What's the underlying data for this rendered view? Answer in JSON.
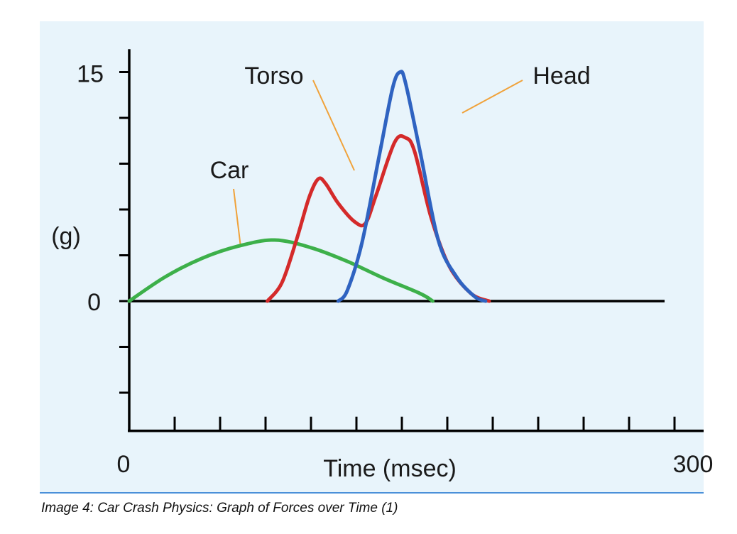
{
  "caption": "Image 4: Car Crash Physics: Graph of Forces over Time (1)",
  "chart_data": {
    "type": "line",
    "title": "",
    "xlabel": "Time (msec)",
    "ylabel": "(g)",
    "xlim": [
      0,
      300
    ],
    "ylim": [
      -8.5,
      16.5
    ],
    "x_tick_labels": [
      "0",
      "300"
    ],
    "y_tick_labels": [
      "0",
      "15"
    ],
    "x_ticks": [
      0,
      25,
      50,
      75,
      100,
      125,
      150,
      175,
      200,
      225,
      250,
      275,
      300
    ],
    "y_ticks": [
      -6,
      -3,
      0,
      3,
      6,
      9,
      12,
      15
    ],
    "grid": false,
    "series": [
      {
        "name": "Car",
        "color": "#3db04a",
        "points": [
          [
            0,
            0
          ],
          [
            20,
            1.6
          ],
          [
            40,
            2.8
          ],
          [
            60,
            3.6
          ],
          [
            80,
            4.0
          ],
          [
            100,
            3.5
          ],
          [
            120,
            2.6
          ],
          [
            140,
            1.5
          ],
          [
            160,
            0.5
          ],
          [
            167,
            0
          ]
        ]
      },
      {
        "name": "Torso",
        "color": "#d42a2a",
        "points": [
          [
            76,
            0
          ],
          [
            84,
            1.2
          ],
          [
            92,
            4.0
          ],
          [
            99,
            6.8
          ],
          [
            104,
            8.0
          ],
          [
            108,
            7.7
          ],
          [
            115,
            6.4
          ],
          [
            124,
            5.2
          ],
          [
            130,
            5.1
          ],
          [
            136,
            7.0
          ],
          [
            146,
            10.4
          ],
          [
            152,
            10.7
          ],
          [
            157,
            9.8
          ],
          [
            166,
            5.5
          ],
          [
            176,
            2.3
          ],
          [
            188,
            0.5
          ],
          [
            198,
            0
          ]
        ]
      },
      {
        "name": "Head",
        "color": "#2f63c1",
        "points": [
          [
            115,
            0
          ],
          [
            120,
            0.7
          ],
          [
            128,
            3.8
          ],
          [
            138,
            9.8
          ],
          [
            145,
            14.0
          ],
          [
            149,
            15.0
          ],
          [
            152,
            14.3
          ],
          [
            160,
            9.8
          ],
          [
            170,
            4.0
          ],
          [
            180,
            1.6
          ],
          [
            190,
            0.3
          ],
          [
            196,
            0
          ]
        ]
      }
    ],
    "annotations": [
      {
        "text": "Car",
        "series": "Car"
      },
      {
        "text": "Torso",
        "series": "Torso"
      },
      {
        "text": "Head",
        "series": "Head"
      }
    ]
  }
}
